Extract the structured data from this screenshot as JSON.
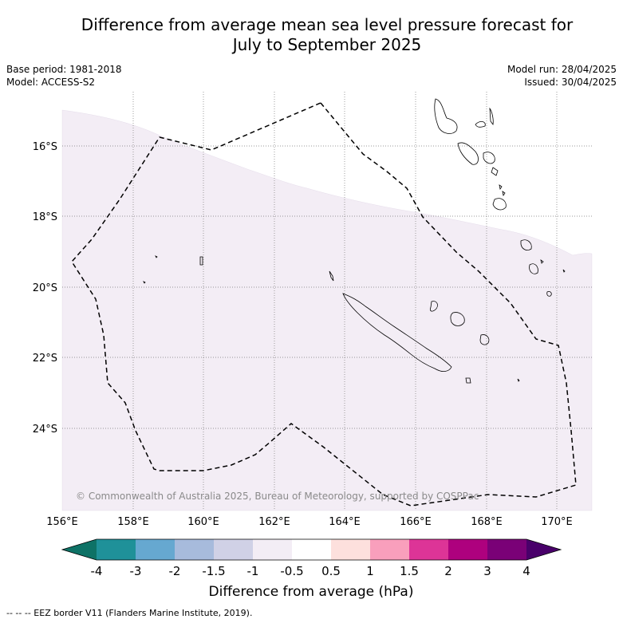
{
  "header": {
    "title_line1": "Difference from average mean sea level pressure forecast for",
    "title_line2": "July to September 2025",
    "base_period": "Base period: 1981-2018",
    "model": "Model: ACCESS-S2",
    "model_run": "Model run: 28/04/2025",
    "issued": "Issued: 30/04/2025"
  },
  "map": {
    "lat_labels": [
      "16°S",
      "18°S",
      "20°S",
      "22°S",
      "24°S"
    ],
    "lon_labels": [
      "156°E",
      "158°E",
      "160°E",
      "162°E",
      "164°E",
      "166°E",
      "168°E",
      "170°E"
    ],
    "copyright": "© Commonwealth of Australia 2025, Bureau of Meteorology, supported by COSPPac",
    "anomaly_fill_color": "#f3edf5",
    "eez_line_color": "#000000"
  },
  "colorbar": {
    "ticks": [
      "-4",
      "-3",
      "-2",
      "-1.5",
      "-1",
      "-0.5",
      "0.5",
      "1",
      "1.5",
      "2",
      "3",
      "4"
    ],
    "colors": [
      "#0e7266",
      "#1f9199",
      "#66a8d0",
      "#a7bbdc",
      "#d0d1e6",
      "#f3edf5",
      "#ffffff",
      "#fde0dd",
      "#f99fbc",
      "#dd3497",
      "#ae017e",
      "#7a0177",
      "#49006a"
    ],
    "label": "Difference from average (hPa)"
  },
  "footer": {
    "legend": "--  --  -- EEZ border V11 (Flanders Marine Institute, 2019)."
  }
}
